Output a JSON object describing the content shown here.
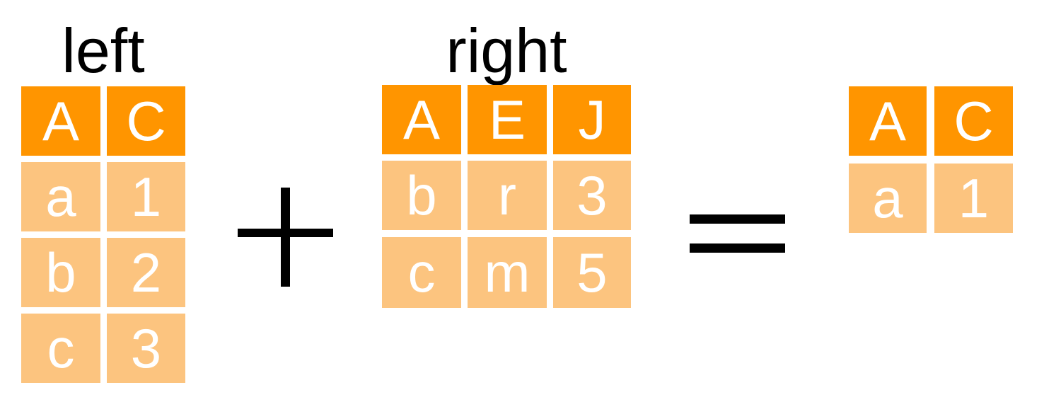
{
  "colors": {
    "header": "#ff9500",
    "row": "#fcc47f",
    "text": "#ffffff",
    "operator": "#000000"
  },
  "left": {
    "title": "left",
    "columns": [
      "A",
      "C"
    ],
    "rows": [
      [
        "a",
        "1"
      ],
      [
        "b",
        "2"
      ],
      [
        "c",
        "3"
      ]
    ]
  },
  "right": {
    "title": "right",
    "columns": [
      "A",
      "E",
      "J"
    ],
    "rows": [
      [
        "b",
        "r",
        "3"
      ],
      [
        "c",
        "m",
        "5"
      ]
    ]
  },
  "result": {
    "columns": [
      "A",
      "C"
    ],
    "rows": [
      [
        "a",
        "1"
      ]
    ]
  },
  "operators": [
    "plus-icon",
    "equals-icon"
  ]
}
